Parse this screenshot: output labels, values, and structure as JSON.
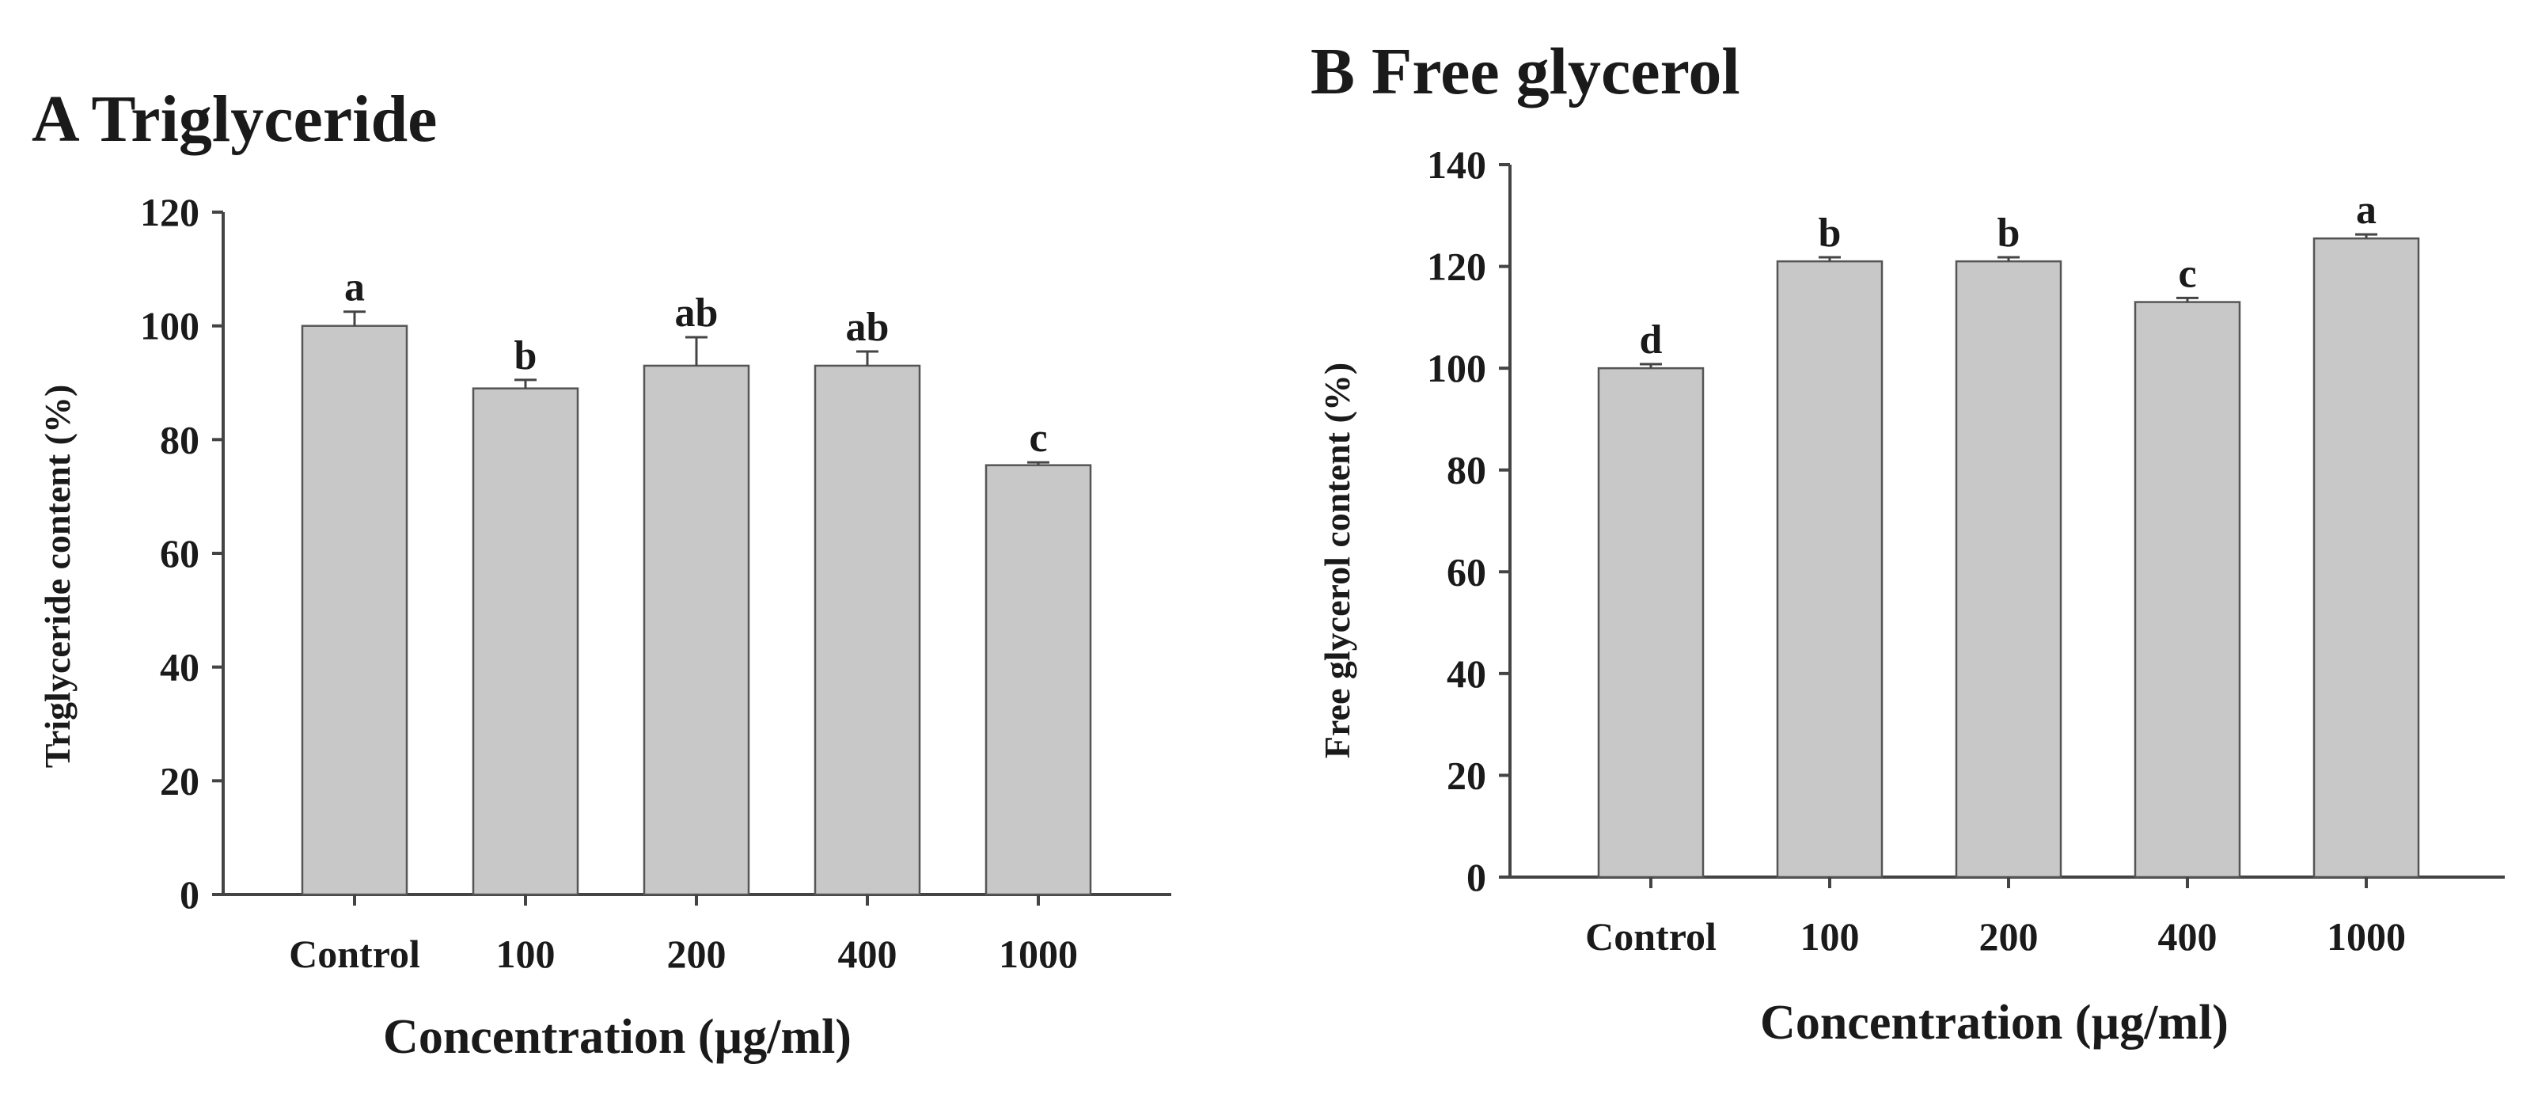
{
  "chart_data": [
    {
      "type": "bar",
      "title": "A Triglyceride",
      "xlabel": "Concentration (µg/ml)",
      "ylabel": "Triglyceride content (%)",
      "ylim": [
        0,
        120
      ],
      "yticks": [
        0,
        20,
        40,
        60,
        80,
        100,
        120
      ],
      "categories": [
        "Control",
        "100",
        "200",
        "400",
        "1000"
      ],
      "values": [
        100,
        89,
        93,
        93,
        75.5
      ],
      "errors": [
        2.5,
        1.5,
        5,
        2.5,
        0.5
      ],
      "labels": [
        "a",
        "b",
        "ab",
        "ab",
        "c"
      ],
      "bar_color": "#c8c8c8"
    },
    {
      "type": "bar",
      "title": "B Free glycerol",
      "xlabel": "Concentration (µg/ml)",
      "ylabel": "Free glycerol content (%)",
      "ylim": [
        0,
        140
      ],
      "yticks": [
        0,
        20,
        40,
        60,
        80,
        100,
        120,
        140
      ],
      "categories": [
        "Control",
        "100",
        "200",
        "400",
        "1000"
      ],
      "values": [
        100,
        121,
        121,
        113,
        125.5
      ],
      "errors": [
        0.8,
        0.8,
        0.8,
        0.8,
        0.8
      ],
      "labels": [
        "d",
        "b",
        "b",
        "c",
        "a"
      ],
      "bar_color": "#c8c8c8"
    }
  ]
}
